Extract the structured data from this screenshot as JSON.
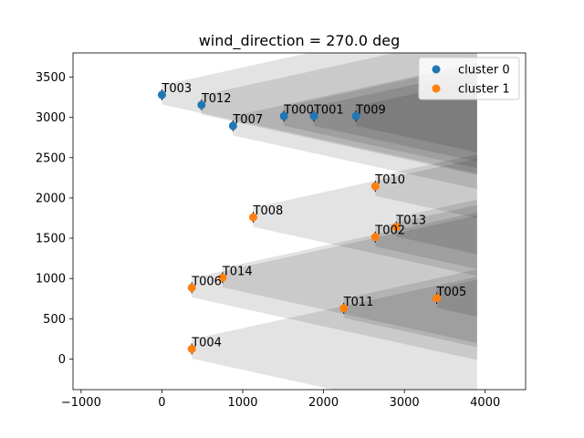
{
  "chart_data": {
    "type": "scatter",
    "title": "wind_direction = 270.0 deg",
    "xlabel": "",
    "ylabel": "",
    "xlim": [
      -1100,
      4500
    ],
    "ylim": [
      -380,
      3800
    ],
    "x_ticks": [
      -1000,
      0,
      1000,
      2000,
      3000,
      4000
    ],
    "y_ticks": [
      0,
      500,
      1000,
      1500,
      2000,
      2500,
      3000,
      3500
    ],
    "x_tick_labels": [
      "−1000",
      "0",
      "1000",
      "2000",
      "3000",
      "4000"
    ],
    "y_tick_labels": [
      "0",
      "500",
      "1000",
      "1500",
      "2000",
      "2500",
      "3000",
      "3500"
    ],
    "wake_extent_x": 3900,
    "wake_spread_slope": 0.22,
    "wake_color": "#000000",
    "wake_opacity": 0.11,
    "legend_position": "top-right",
    "series": [
      {
        "name": "cluster 0",
        "color": "#1f77b4",
        "points": [
          {
            "label": "T003",
            "x": 0,
            "y": 3280
          },
          {
            "label": "T012",
            "x": 490,
            "y": 3155
          },
          {
            "label": "T007",
            "x": 880,
            "y": 2895
          },
          {
            "label": "T000",
            "x": 1510,
            "y": 3015
          },
          {
            "label": "T001",
            "x": 1880,
            "y": 3015
          },
          {
            "label": "T009",
            "x": 2400,
            "y": 3015
          }
        ]
      },
      {
        "name": "cluster 1",
        "color": "#ff7f0e",
        "points": [
          {
            "label": "T010",
            "x": 2640,
            "y": 2145
          },
          {
            "label": "T008",
            "x": 1130,
            "y": 1760
          },
          {
            "label": "T013",
            "x": 2900,
            "y": 1640
          },
          {
            "label": "T002",
            "x": 2640,
            "y": 1515
          },
          {
            "label": "T014",
            "x": 750,
            "y": 1010
          },
          {
            "label": "T006",
            "x": 370,
            "y": 885
          },
          {
            "label": "T005",
            "x": 3400,
            "y": 755
          },
          {
            "label": "T011",
            "x": 2250,
            "y": 630
          },
          {
            "label": "T004",
            "x": 370,
            "y": 125
          }
        ]
      }
    ]
  }
}
